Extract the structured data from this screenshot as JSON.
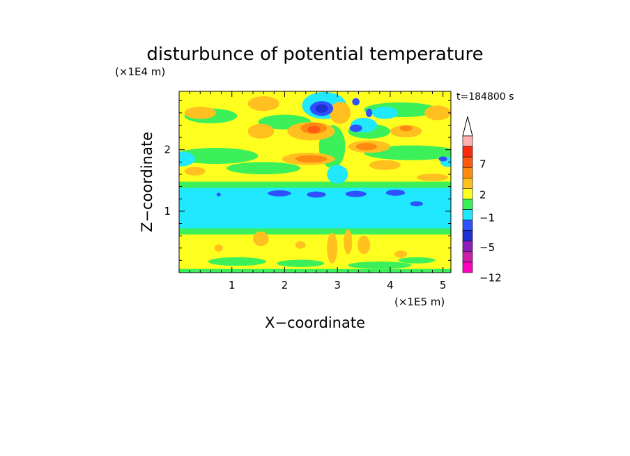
{
  "chart_data": {
    "type": "heatmap",
    "title": "disturbunce of potential temperature",
    "xlabel": "X−coordinate",
    "ylabel": "Z−coordinate",
    "x_scale_label": "(×1E5 m)",
    "y_scale_label": "(×1E4 m)",
    "time_label": "t=184800 s",
    "xlim": [
      0,
      5.15
    ],
    "ylim": [
      0,
      2.95
    ],
    "x_ticks": [
      "1",
      "2",
      "3",
      "4",
      "5"
    ],
    "y_ticks": [
      "1",
      "2"
    ],
    "colorbar": {
      "labels": [
        "7",
        "2",
        "−1",
        "−5",
        "−12"
      ],
      "extend_max": true
    },
    "colors": {
      "magenta": "#ff00c0",
      "purple": "#cc1fa8",
      "violet": "#8c1fb8",
      "deep_blue": "#1f2fd0",
      "blue": "#2f50ff",
      "cyan": "#1fe8ff",
      "green": "#3cf05a",
      "yellow": "#ffff1f",
      "orange_yellow": "#ffc020",
      "orange": "#ff8a10",
      "red_orange": "#ff5a10",
      "red": "#ff2a10",
      "pink": "#ffb0b0"
    }
  }
}
